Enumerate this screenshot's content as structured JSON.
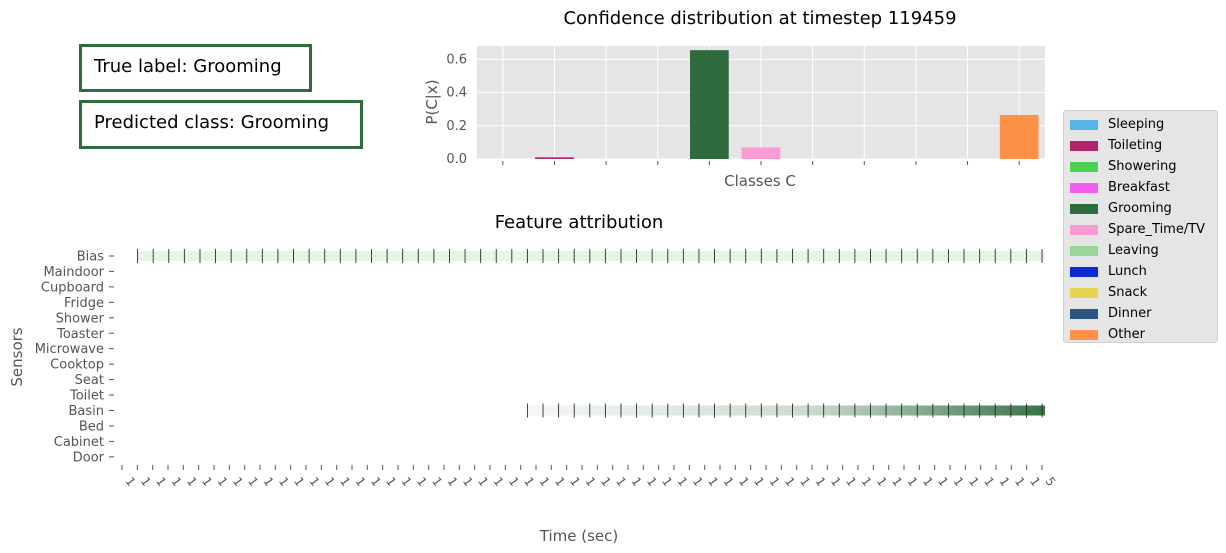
{
  "info_boxes": {
    "true_label": "True label: Grooming",
    "predicted_class": "Predicted class: Grooming"
  },
  "colors": {
    "Sleeping": "#56b4e9",
    "Toileting": "#b0256b",
    "Showering": "#4bd151",
    "Breakfast": "#f45ef0",
    "Grooming": "#2e6b3e",
    "Spare_Time/TV": "#f99cd4",
    "Leaving": "#9bd69c",
    "Lunch": "#0c2ad0",
    "Snack": "#e5d44f",
    "Dinner": "#2a5580",
    "Other": "#fe9148",
    "axes_bg": "#e5e5e5",
    "attribution_green": "#2e6b3e"
  },
  "chart_data": [
    {
      "type": "bar",
      "title": "Confidence distribution at timestep 119459",
      "xlabel": "Classes C",
      "ylabel": "P(C|x)",
      "ylim": [
        0,
        0.68
      ],
      "yticks": [
        "0.0",
        "0.2",
        "0.4",
        "0.6"
      ],
      "ytick_values": [
        0.0,
        0.2,
        0.4,
        0.6
      ],
      "grid": true,
      "categories": [
        "Sleeping",
        "Toileting",
        "Showering",
        "Breakfast",
        "Grooming",
        "Spare_Time/TV",
        "Leaving",
        "Lunch",
        "Snack",
        "Dinner",
        "Other"
      ],
      "values": [
        0.0,
        0.01,
        0.0,
        0.0,
        0.655,
        0.07,
        0.0,
        0.0,
        0.0,
        0.0,
        0.265
      ],
      "legend": {
        "placement": "right",
        "entries": [
          "Sleeping",
          "Toileting",
          "Showering",
          "Breakfast",
          "Grooming",
          "Spare_Time/TV",
          "Leaving",
          "Lunch",
          "Snack",
          "Dinner",
          "Other"
        ]
      }
    },
    {
      "type": "heatmap",
      "title": "Feature attribution",
      "xlabel": "Time (sec)",
      "ylabel": "Sensors",
      "rows": [
        "Bias",
        "Maindoor",
        "Cupboard",
        "Fridge",
        "Shower",
        "Toaster",
        "Microwave",
        "Cooktop",
        "Seat",
        "Toilet",
        "Basin",
        "Bed",
        "Cabinet",
        "Door"
      ],
      "n_timesteps": 60,
      "bias_start_index": 1,
      "basin_start_index": 26,
      "xtick_labels": [
        "1",
        "1",
        "1",
        "1",
        "1",
        "1",
        "1",
        "1",
        "1",
        "1",
        "1",
        "1",
        "1",
        "1",
        "1",
        "1",
        "1",
        "1",
        "1",
        "1",
        "1",
        "1",
        "1",
        "1",
        "1",
        "1",
        "1",
        "1",
        "1",
        "1",
        "1",
        "1",
        "1",
        "1",
        "1",
        "1",
        "1",
        "1",
        "1",
        "1",
        "1",
        "1",
        "1",
        "1",
        "1",
        "1",
        "1",
        "1",
        "1",
        "1",
        "1",
        "1",
        "1",
        "1",
        "1",
        "1",
        "1",
        "1",
        "1",
        "1",
        "5"
      ]
    }
  ]
}
